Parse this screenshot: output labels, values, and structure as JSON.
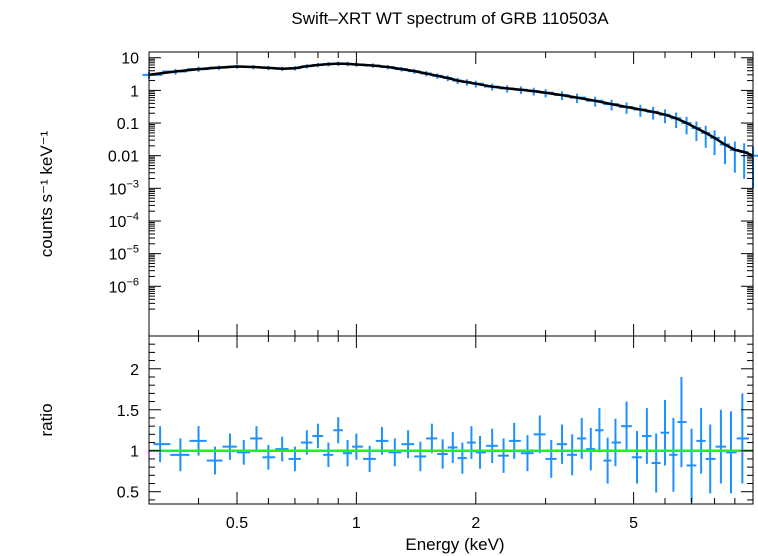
{
  "chart_data": [
    {
      "type": "scatter",
      "panel": "spectrum",
      "title": "Swift–XRT WT spectrum of GRB 110503A",
      "xlabel": "Energy (keV)",
      "ylabel": "counts s⁻¹ keV⁻¹",
      "xscale": "log",
      "yscale": "log",
      "xlim": [
        0.3,
        10
      ],
      "ylim": [
        3e-08,
        15
      ],
      "x_ticks": [
        0.5,
        1,
        2,
        5
      ],
      "x_tick_labels": [
        "0.5",
        "1",
        "2",
        "5"
      ],
      "y_ticks": [
        10,
        1,
        0.1,
        0.01,
        0.001,
        0.0001,
        1e-05,
        1e-06
      ],
      "y_tick_labels": [
        {
          "base": "10",
          "exp": ""
        },
        {
          "base": "1",
          "exp": ""
        },
        {
          "base": "0.1",
          "exp": ""
        },
        {
          "base": "0.01",
          "exp": ""
        },
        {
          "base": "10",
          "exp": "−3"
        },
        {
          "base": "10",
          "exp": "−4"
        },
        {
          "base": "10",
          "exp": "−5"
        },
        {
          "base": "10",
          "exp": "−6"
        }
      ],
      "series": [
        {
          "color": "#1e90ff",
          "style": "error-crosses",
          "x": [
            0.3,
            0.35,
            0.4,
            0.45,
            0.5,
            0.55,
            0.6,
            0.65,
            0.7,
            0.75,
            0.8,
            0.85,
            0.9,
            0.95,
            1.0,
            1.1,
            1.2,
            1.3,
            1.4,
            1.5,
            1.6,
            1.7,
            1.8,
            1.9,
            2.0,
            2.2,
            2.4,
            2.6,
            2.8,
            3.0,
            3.3,
            3.6,
            4.0,
            4.4,
            4.8,
            5.2,
            5.6,
            6.0,
            6.4,
            6.8,
            7.2,
            7.6,
            8.0,
            8.5,
            9.0,
            9.5,
            10.0
          ],
          "y": [
            3.0,
            3.8,
            4.5,
            5.0,
            5.4,
            5.2,
            4.9,
            4.6,
            4.8,
            5.5,
            6.0,
            6.4,
            6.6,
            6.5,
            6.2,
            5.8,
            5.2,
            4.5,
            3.9,
            3.3,
            2.8,
            2.4,
            2.0,
            1.8,
            1.6,
            1.3,
            1.15,
            1.05,
            0.95,
            0.85,
            0.72,
            0.6,
            0.48,
            0.38,
            0.31,
            0.26,
            0.22,
            0.18,
            0.14,
            0.1,
            0.07,
            0.05,
            0.035,
            0.022,
            0.015,
            0.013,
            0.01
          ],
          "yerr_frac": [
            0.25,
            0.2,
            0.18,
            0.16,
            0.15,
            0.15,
            0.15,
            0.15,
            0.15,
            0.15,
            0.15,
            0.15,
            0.15,
            0.15,
            0.15,
            0.15,
            0.15,
            0.16,
            0.17,
            0.18,
            0.19,
            0.2,
            0.21,
            0.22,
            0.23,
            0.24,
            0.25,
            0.26,
            0.27,
            0.28,
            0.3,
            0.32,
            0.34,
            0.36,
            0.38,
            0.4,
            0.42,
            0.45,
            0.5,
            0.55,
            0.6,
            0.65,
            0.7,
            0.75,
            0.8,
            0.85,
            0.9
          ]
        },
        {
          "color": "#000000",
          "style": "model-line",
          "x": [
            0.3,
            0.35,
            0.4,
            0.45,
            0.5,
            0.55,
            0.6,
            0.65,
            0.7,
            0.75,
            0.8,
            0.85,
            0.9,
            0.95,
            1.0,
            1.1,
            1.2,
            1.3,
            1.4,
            1.5,
            1.6,
            1.7,
            1.8,
            1.9,
            2.0,
            2.2,
            2.4,
            2.6,
            2.8,
            3.0,
            3.3,
            3.6,
            4.0,
            4.4,
            4.8,
            5.2,
            5.6,
            6.0,
            6.4,
            6.8,
            7.2,
            7.6,
            8.0,
            8.5,
            9.0,
            9.5,
            10.0
          ],
          "y": [
            3.0,
            3.8,
            4.5,
            5.0,
            5.4,
            5.2,
            4.9,
            4.6,
            4.8,
            5.5,
            6.0,
            6.4,
            6.6,
            6.5,
            6.2,
            5.8,
            5.2,
            4.5,
            3.9,
            3.3,
            2.8,
            2.4,
            2.0,
            1.8,
            1.6,
            1.3,
            1.15,
            1.05,
            0.95,
            0.85,
            0.72,
            0.6,
            0.48,
            0.38,
            0.31,
            0.26,
            0.22,
            0.18,
            0.14,
            0.1,
            0.07,
            0.05,
            0.035,
            0.022,
            0.015,
            0.013,
            0.01
          ]
        }
      ]
    },
    {
      "type": "scatter",
      "panel": "ratio",
      "xlabel": "Energy (keV)",
      "ylabel": "ratio",
      "xscale": "log",
      "xlim": [
        0.3,
        10
      ],
      "ylim": [
        0.35,
        2.4
      ],
      "x_ticks": [
        0.5,
        1,
        2,
        5
      ],
      "x_tick_labels": [
        "0.5",
        "1",
        "2",
        "5"
      ],
      "y_ticks": [
        0.5,
        1,
        1.5,
        2
      ],
      "y_tick_labels": [
        "0.5",
        "1",
        "1.5",
        "2"
      ],
      "reference_line": {
        "y": 1.0,
        "color": "#22ee22"
      },
      "series": [
        {
          "color": "#1e90ff",
          "style": "error-crosses",
          "x": [
            0.32,
            0.36,
            0.4,
            0.44,
            0.48,
            0.52,
            0.56,
            0.6,
            0.65,
            0.7,
            0.75,
            0.8,
            0.85,
            0.9,
            0.95,
            1.0,
            1.08,
            1.16,
            1.25,
            1.35,
            1.45,
            1.55,
            1.65,
            1.75,
            1.85,
            1.95,
            2.05,
            2.2,
            2.35,
            2.5,
            2.7,
            2.9,
            3.1,
            3.3,
            3.5,
            3.7,
            3.9,
            4.1,
            4.3,
            4.5,
            4.8,
            5.1,
            5.4,
            5.7,
            6.0,
            6.3,
            6.6,
            7.0,
            7.4,
            7.8,
            8.3,
            8.8,
            9.4
          ],
          "y": [
            1.08,
            0.95,
            1.12,
            0.88,
            1.05,
            0.98,
            1.15,
            0.92,
            1.02,
            0.9,
            1.1,
            1.18,
            0.95,
            1.25,
            0.97,
            1.05,
            0.9,
            1.12,
            0.98,
            1.08,
            0.93,
            1.15,
            0.96,
            1.04,
            0.91,
            1.1,
            0.98,
            1.06,
            0.94,
            1.12,
            0.97,
            1.2,
            0.9,
            1.08,
            0.95,
            1.15,
            1.02,
            1.25,
            0.88,
            1.1,
            1.3,
            0.92,
            1.18,
            0.85,
            1.22,
            0.95,
            1.35,
            0.82,
            1.12,
            0.9,
            1.05,
            0.98,
            1.15
          ],
          "yerr": [
            0.22,
            0.2,
            0.18,
            0.17,
            0.16,
            0.15,
            0.15,
            0.15,
            0.15,
            0.15,
            0.15,
            0.15,
            0.15,
            0.16,
            0.16,
            0.16,
            0.16,
            0.17,
            0.17,
            0.17,
            0.18,
            0.18,
            0.18,
            0.19,
            0.19,
            0.2,
            0.2,
            0.21,
            0.21,
            0.22,
            0.22,
            0.23,
            0.23,
            0.24,
            0.25,
            0.25,
            0.26,
            0.27,
            0.28,
            0.29,
            0.3,
            0.32,
            0.34,
            0.36,
            0.4,
            0.45,
            0.55,
            0.45,
            0.4,
            0.42,
            0.45,
            0.5,
            0.55
          ]
        }
      ]
    }
  ]
}
